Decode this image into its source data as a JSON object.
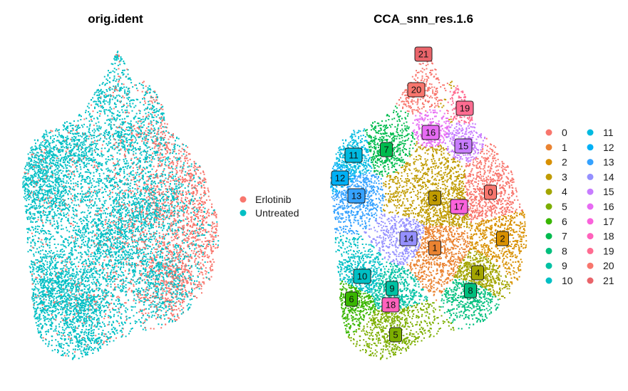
{
  "chart_data": [
    {
      "type": "scatter",
      "title": "orig.ident",
      "xlabel": "",
      "ylabel": "",
      "legend": {
        "placement": "right",
        "entries": [
          {
            "name": "Erlotinib",
            "color": "#F8766D"
          },
          {
            "name": "Untreated",
            "color": "#00BFC4"
          }
        ]
      }
    },
    {
      "type": "scatter",
      "title": "CCA_snn_res.1.6",
      "xlabel": "",
      "ylabel": "",
      "legend": {
        "placement": "right",
        "entries": [
          {
            "name": "0",
            "color": "#F8766D"
          },
          {
            "name": "1",
            "color": "#EA8331"
          },
          {
            "name": "2",
            "color": "#D89000"
          },
          {
            "name": "3",
            "color": "#C09B00"
          },
          {
            "name": "4",
            "color": "#A3A500"
          },
          {
            "name": "5",
            "color": "#7CAE00"
          },
          {
            "name": "6",
            "color": "#39B600"
          },
          {
            "name": "7",
            "color": "#00BB4E"
          },
          {
            "name": "8",
            "color": "#00BF7D"
          },
          {
            "name": "9",
            "color": "#00C1A3"
          },
          {
            "name": "10",
            "color": "#00BFC4"
          },
          {
            "name": "11",
            "color": "#00BAE0"
          },
          {
            "name": "12",
            "color": "#00B0F6"
          },
          {
            "name": "13",
            "color": "#35A2FF"
          },
          {
            "name": "14",
            "color": "#9590FF"
          },
          {
            "name": "15",
            "color": "#C77CFF"
          },
          {
            "name": "16",
            "color": "#E76BF3"
          },
          {
            "name": "17",
            "color": "#FA62DB"
          },
          {
            "name": "18",
            "color": "#FF62BC"
          },
          {
            "name": "19",
            "color": "#FF6C91"
          },
          {
            "name": "20",
            "color": "#F8766D"
          },
          {
            "name": "21",
            "color": "#E9646A"
          }
        ]
      },
      "cluster_labels": [
        "0",
        "1",
        "2",
        "3",
        "4",
        "5",
        "6",
        "7",
        "8",
        "9",
        "10",
        "11",
        "12",
        "13",
        "14",
        "15",
        "16",
        "17",
        "18",
        "19",
        "20",
        "21"
      ]
    }
  ]
}
